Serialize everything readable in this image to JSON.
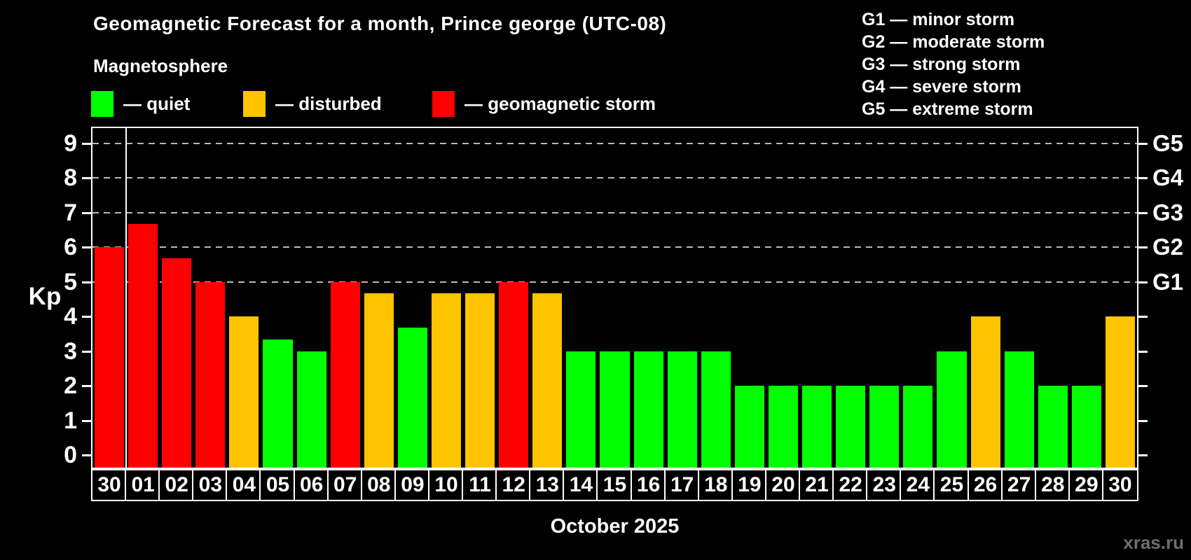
{
  "header": {
    "title": "Geomagnetic Forecast for a month, Prince george (UTC-08)",
    "subtitle": "Magnetosphere"
  },
  "legend": {
    "items": [
      {
        "label": "— quiet",
        "category": "quiet",
        "color": "#00ff00"
      },
      {
        "label": "— disturbed",
        "category": "disturbed",
        "color": "#ffc400"
      },
      {
        "label": "— geomagnetic storm",
        "category": "storm",
        "color": "#ff0000"
      }
    ]
  },
  "storm_scale": {
    "items": [
      {
        "label": "G1 — minor storm"
      },
      {
        "label": "G2 — moderate storm"
      },
      {
        "label": "G3 — strong storm"
      },
      {
        "label": "G4 — severe storm"
      },
      {
        "label": "G5 — extreme storm"
      }
    ]
  },
  "chart_data": {
    "type": "bar",
    "title": "Geomagnetic Forecast for a month, Prince george (UTC-08)",
    "subtitle": "Magnetosphere",
    "categories": [
      "30",
      "01",
      "02",
      "03",
      "04",
      "05",
      "06",
      "07",
      "08",
      "09",
      "10",
      "11",
      "12",
      "13",
      "14",
      "15",
      "16",
      "17",
      "18",
      "19",
      "20",
      "21",
      "22",
      "23",
      "24",
      "25",
      "26",
      "27",
      "28",
      "29",
      "30"
    ],
    "values": [
      6,
      6.67,
      5.67,
      5,
      4,
      3.33,
      3,
      5,
      4.67,
      3.67,
      4.67,
      4.67,
      5,
      4.67,
      3,
      3,
      3,
      3,
      3,
      2,
      2,
      2,
      2,
      2,
      2,
      3,
      4,
      3,
      2,
      2,
      4
    ],
    "bar_states": [
      "storm",
      "storm",
      "storm",
      "storm",
      "disturbed",
      "quiet",
      "quiet",
      "storm",
      "disturbed",
      "quiet",
      "disturbed",
      "disturbed",
      "storm",
      "disturbed",
      "quiet",
      "quiet",
      "quiet",
      "quiet",
      "quiet",
      "quiet",
      "quiet",
      "quiet",
      "quiet",
      "quiet",
      "quiet",
      "quiet",
      "disturbed",
      "quiet",
      "quiet",
      "quiet",
      "disturbed"
    ],
    "colors": {
      "quiet": "#00ff00",
      "disturbed": "#ffc400",
      "storm": "#ff0000"
    },
    "ylabel": "Kp",
    "xlabel": "October 2025",
    "ylim": [
      0,
      9
    ],
    "yticks": [
      0,
      1,
      2,
      3,
      4,
      5,
      6,
      7,
      8,
      9
    ],
    "gridline_levels": [
      5,
      6,
      7,
      8,
      9
    ],
    "right_axis": [
      {
        "value": 5,
        "label": "G1"
      },
      {
        "value": 6,
        "label": "G2"
      },
      {
        "value": 7,
        "label": "G3"
      },
      {
        "value": 8,
        "label": "G4"
      },
      {
        "value": 9,
        "label": "G5"
      }
    ],
    "month_separator_after_index": 0,
    "grid": true,
    "legend_position": "top-left"
  },
  "watermark": "xras.ru"
}
